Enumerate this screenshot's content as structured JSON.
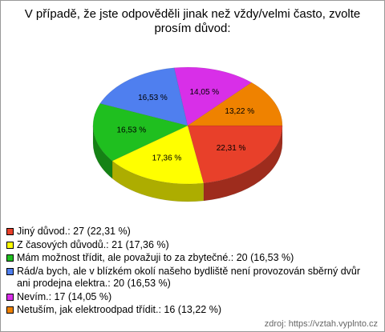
{
  "chart_data": {
    "type": "pie",
    "title": "V případě, že jste odpověděli jinak než vždy/velmi často, zvolte prosím důvod:",
    "legend": [
      "Jiný důvod.: 27 (22,31 %)",
      "Z časových důvodů.: 21 (17,36 %)",
      "Mám možnost třídit, ale považuji to za zbytečné.: 20 (16,53 %)",
      "Rád/a bych, ale v blízkém okolí našeho bydliště není provozován sběrný dvůr ani prodejna elektra.: 20 (16,53 %)",
      "Nevím.: 17 (14,05 %)",
      "Netuším, jak elektroodpad třídit.: 16 (13,22 %)"
    ],
    "values": [
      22.31,
      17.36,
      16.53,
      16.53,
      14.05,
      13.22
    ],
    "value_labels": [
      "22,31 %",
      "17,36 %",
      "16,53 %",
      "16,53 %",
      "14,05 %",
      "13,22 %"
    ],
    "colors": [
      "#e8402a",
      "#ffff00",
      "#1fbf1f",
      "#4f7fef",
      "#d82fe8",
      "#ef8200"
    ],
    "source": "zdroj: https://vztah.vyplnto.cz"
  }
}
